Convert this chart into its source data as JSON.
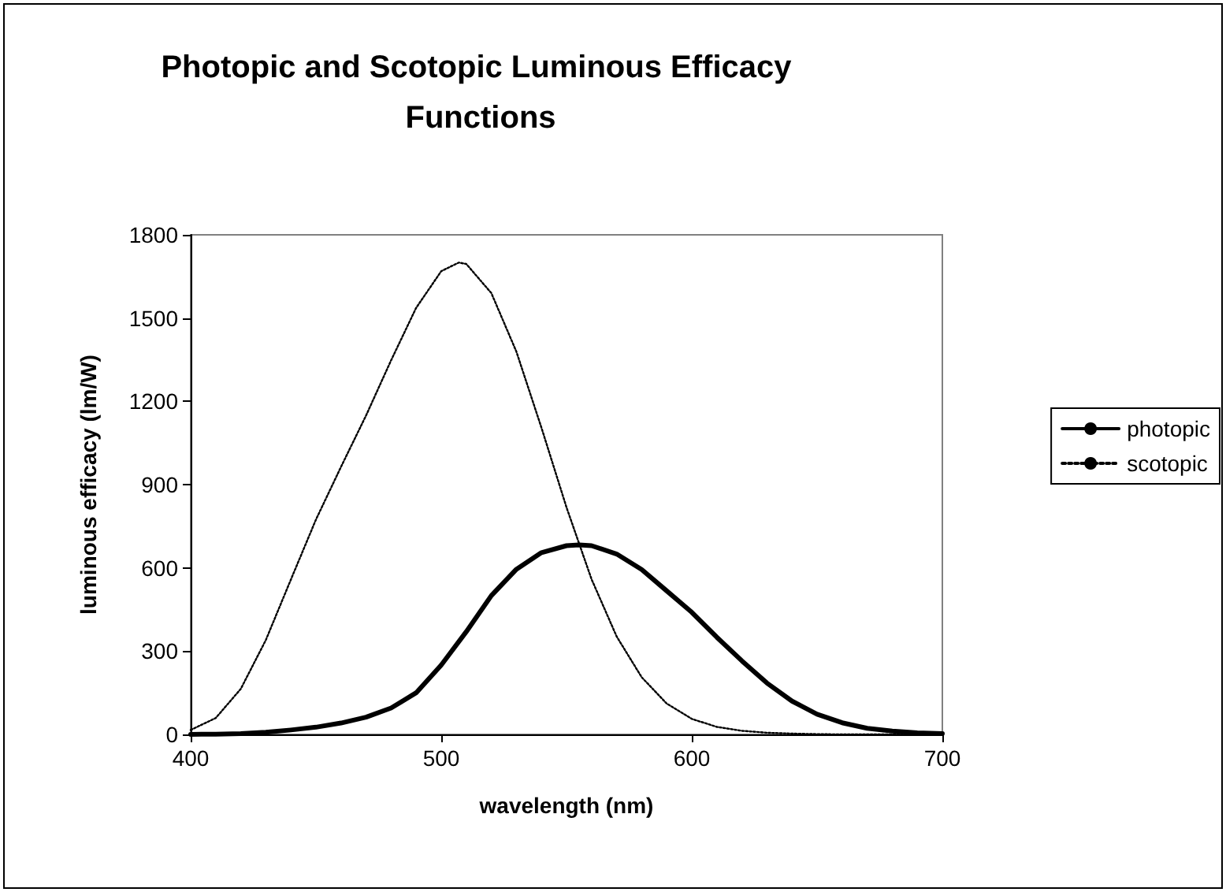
{
  "chart_data": {
    "type": "line",
    "title": "Photopic and Scotopic Luminous Efficacy Functions",
    "xlabel": "wavelength (nm)",
    "ylabel": "luminous efficacy (lm/W)",
    "xlim": [
      400,
      700
    ],
    "xticks": [
      400,
      500,
      600,
      700
    ],
    "ylim": [
      0,
      1800
    ],
    "yticks": [
      0,
      300,
      600,
      900,
      1200,
      1500,
      1800
    ],
    "grid": false,
    "legend": "right",
    "marker": "none",
    "series": [
      {
        "name": "photopic",
        "color": "#000000",
        "line_style": "solid",
        "x": [
          400,
          410,
          420,
          430,
          440,
          450,
          460,
          470,
          480,
          490,
          500,
          510,
          520,
          530,
          540,
          550,
          555,
          560,
          570,
          580,
          590,
          600,
          610,
          620,
          630,
          640,
          650,
          660,
          670,
          680,
          690,
          700
        ],
        "values": [
          0,
          1,
          3,
          8,
          16,
          26,
          41,
          62,
          95,
          150,
          250,
          370,
          500,
          595,
          655,
          680,
          683,
          680,
          650,
          594,
          517,
          440,
          350,
          265,
          185,
          120,
          73,
          42,
          22,
          12,
          6,
          3
        ]
      },
      {
        "name": "scotopic",
        "color": "#000000",
        "line_style": "dotted",
        "x": [
          400,
          410,
          420,
          430,
          440,
          450,
          460,
          470,
          480,
          490,
          500,
          507,
          510,
          520,
          530,
          540,
          550,
          560,
          570,
          580,
          590,
          600,
          610,
          620,
          630,
          640,
          650,
          660,
          670,
          680,
          690,
          700
        ],
        "values": [
          16,
          59,
          164,
          340,
          558,
          774,
          964,
          1149,
          1348,
          1537,
          1669,
          1700,
          1695,
          1590,
          1379,
          1105,
          818,
          559,
          353,
          206,
          111,
          56,
          27,
          13,
          6,
          3,
          1,
          0,
          0,
          0,
          0,
          0
        ]
      }
    ]
  }
}
